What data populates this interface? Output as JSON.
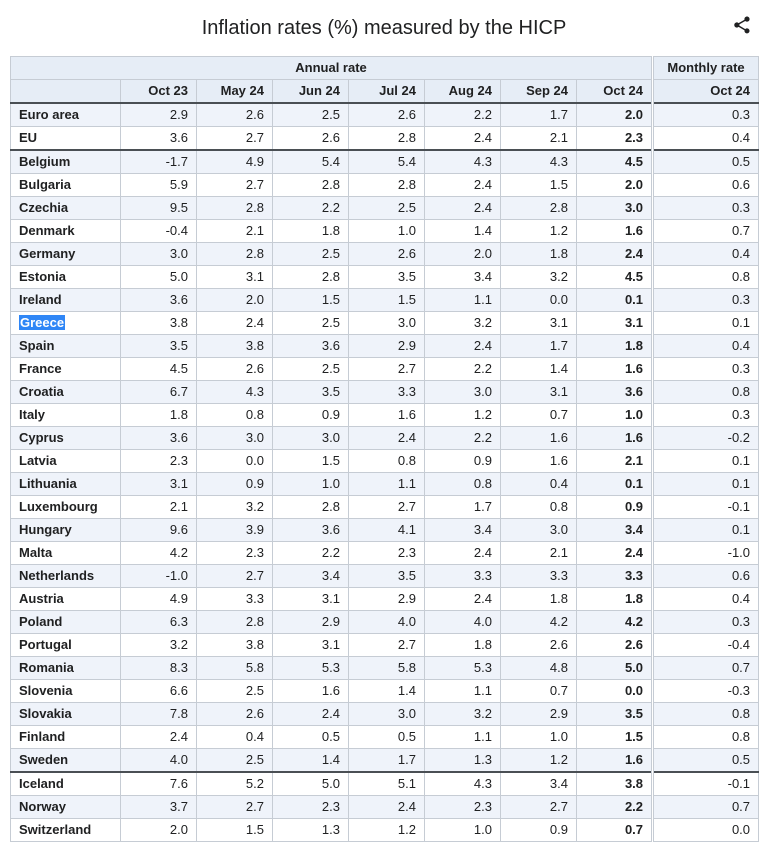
{
  "title": "Inflation rates (%) measured by the HICP",
  "ui": {
    "selected_country": "Greece",
    "share_icon": "share-icon",
    "colors": {
      "header_bg": "#e6edf6",
      "stripe_bg": "#eff3fa",
      "border": "#c6ccd4",
      "dark_border": "#4a4f54",
      "selection": "#2f86f6"
    }
  },
  "chart_data": {
    "type": "table",
    "title": "Inflation rates (%) measured by the HICP",
    "column_groups": [
      {
        "label": "Annual rate",
        "colspan": 8
      },
      {
        "label": "Monthly rate",
        "colspan": 1
      }
    ],
    "column_headers": [
      "",
      "Oct 23",
      "May 24",
      "Jun 24",
      "Jul 24",
      "Aug 24",
      "Sep 24",
      "Oct 24",
      "Oct 24"
    ],
    "rows": [
      {
        "country": "Euro area",
        "annual": [
          "2.9",
          "2.6",
          "2.5",
          "2.6",
          "2.2",
          "1.7",
          "2.0"
        ],
        "monthly": "0.3",
        "group": "aggregate"
      },
      {
        "country": "EU",
        "annual": [
          "3.6",
          "2.7",
          "2.6",
          "2.8",
          "2.4",
          "2.1",
          "2.3"
        ],
        "monthly": "0.4",
        "group": "aggregate"
      },
      {
        "country": "Belgium",
        "annual": [
          "-1.7",
          "4.9",
          "5.4",
          "5.4",
          "4.3",
          "4.3",
          "4.5"
        ],
        "monthly": "0.5",
        "group": "eu"
      },
      {
        "country": "Bulgaria",
        "annual": [
          "5.9",
          "2.7",
          "2.8",
          "2.8",
          "2.4",
          "1.5",
          "2.0"
        ],
        "monthly": "0.6",
        "group": "eu"
      },
      {
        "country": "Czechia",
        "annual": [
          "9.5",
          "2.8",
          "2.2",
          "2.5",
          "2.4",
          "2.8",
          "3.0"
        ],
        "monthly": "0.3",
        "group": "eu"
      },
      {
        "country": "Denmark",
        "annual": [
          "-0.4",
          "2.1",
          "1.8",
          "1.0",
          "1.4",
          "1.2",
          "1.6"
        ],
        "monthly": "0.7",
        "group": "eu"
      },
      {
        "country": "Germany",
        "annual": [
          "3.0",
          "2.8",
          "2.5",
          "2.6",
          "2.0",
          "1.8",
          "2.4"
        ],
        "monthly": "0.4",
        "group": "eu"
      },
      {
        "country": "Estonia",
        "annual": [
          "5.0",
          "3.1",
          "2.8",
          "3.5",
          "3.4",
          "3.2",
          "4.5"
        ],
        "monthly": "0.8",
        "group": "eu"
      },
      {
        "country": "Ireland",
        "annual": [
          "3.6",
          "2.0",
          "1.5",
          "1.5",
          "1.1",
          "0.0",
          "0.1"
        ],
        "monthly": "0.3",
        "group": "eu"
      },
      {
        "country": "Greece",
        "annual": [
          "3.8",
          "2.4",
          "2.5",
          "3.0",
          "3.2",
          "3.1",
          "3.1"
        ],
        "monthly": "0.1",
        "group": "eu"
      },
      {
        "country": "Spain",
        "annual": [
          "3.5",
          "3.8",
          "3.6",
          "2.9",
          "2.4",
          "1.7",
          "1.8"
        ],
        "monthly": "0.4",
        "group": "eu"
      },
      {
        "country": "France",
        "annual": [
          "4.5",
          "2.6",
          "2.5",
          "2.7",
          "2.2",
          "1.4",
          "1.6"
        ],
        "monthly": "0.3",
        "group": "eu"
      },
      {
        "country": "Croatia",
        "annual": [
          "6.7",
          "4.3",
          "3.5",
          "3.3",
          "3.0",
          "3.1",
          "3.6"
        ],
        "monthly": "0.8",
        "group": "eu"
      },
      {
        "country": "Italy",
        "annual": [
          "1.8",
          "0.8",
          "0.9",
          "1.6",
          "1.2",
          "0.7",
          "1.0"
        ],
        "monthly": "0.3",
        "group": "eu"
      },
      {
        "country": "Cyprus",
        "annual": [
          "3.6",
          "3.0",
          "3.0",
          "2.4",
          "2.2",
          "1.6",
          "1.6"
        ],
        "monthly": "-0.2",
        "group": "eu"
      },
      {
        "country": "Latvia",
        "annual": [
          "2.3",
          "0.0",
          "1.5",
          "0.8",
          "0.9",
          "1.6",
          "2.1"
        ],
        "monthly": "0.1",
        "group": "eu"
      },
      {
        "country": "Lithuania",
        "annual": [
          "3.1",
          "0.9",
          "1.0",
          "1.1",
          "0.8",
          "0.4",
          "0.1"
        ],
        "monthly": "0.1",
        "group": "eu"
      },
      {
        "country": "Luxembourg",
        "annual": [
          "2.1",
          "3.2",
          "2.8",
          "2.7",
          "1.7",
          "0.8",
          "0.9"
        ],
        "monthly": "-0.1",
        "group": "eu"
      },
      {
        "country": "Hungary",
        "annual": [
          "9.6",
          "3.9",
          "3.6",
          "4.1",
          "3.4",
          "3.0",
          "3.4"
        ],
        "monthly": "0.1",
        "group": "eu"
      },
      {
        "country": "Malta",
        "annual": [
          "4.2",
          "2.3",
          "2.2",
          "2.3",
          "2.4",
          "2.1",
          "2.4"
        ],
        "monthly": "-1.0",
        "group": "eu"
      },
      {
        "country": "Netherlands",
        "annual": [
          "-1.0",
          "2.7",
          "3.4",
          "3.5",
          "3.3",
          "3.3",
          "3.3"
        ],
        "monthly": "0.6",
        "group": "eu"
      },
      {
        "country": "Austria",
        "annual": [
          "4.9",
          "3.3",
          "3.1",
          "2.9",
          "2.4",
          "1.8",
          "1.8"
        ],
        "monthly": "0.4",
        "group": "eu"
      },
      {
        "country": "Poland",
        "annual": [
          "6.3",
          "2.8",
          "2.9",
          "4.0",
          "4.0",
          "4.2",
          "4.2"
        ],
        "monthly": "0.3",
        "group": "eu"
      },
      {
        "country": "Portugal",
        "annual": [
          "3.2",
          "3.8",
          "3.1",
          "2.7",
          "1.8",
          "2.6",
          "2.6"
        ],
        "monthly": "-0.4",
        "group": "eu"
      },
      {
        "country": "Romania",
        "annual": [
          "8.3",
          "5.8",
          "5.3",
          "5.8",
          "5.3",
          "4.8",
          "5.0"
        ],
        "monthly": "0.7",
        "group": "eu"
      },
      {
        "country": "Slovenia",
        "annual": [
          "6.6",
          "2.5",
          "1.6",
          "1.4",
          "1.1",
          "0.7",
          "0.0"
        ],
        "monthly": "-0.3",
        "group": "eu"
      },
      {
        "country": "Slovakia",
        "annual": [
          "7.8",
          "2.6",
          "2.4",
          "3.0",
          "3.2",
          "2.9",
          "3.5"
        ],
        "monthly": "0.8",
        "group": "eu"
      },
      {
        "country": "Finland",
        "annual": [
          "2.4",
          "0.4",
          "0.5",
          "0.5",
          "1.1",
          "1.0",
          "1.5"
        ],
        "monthly": "0.8",
        "group": "eu"
      },
      {
        "country": "Sweden",
        "annual": [
          "4.0",
          "2.5",
          "1.4",
          "1.7",
          "1.3",
          "1.2",
          "1.6"
        ],
        "monthly": "0.5",
        "group": "eu"
      },
      {
        "country": "Iceland",
        "annual": [
          "7.6",
          "5.2",
          "5.0",
          "5.1",
          "4.3",
          "3.4",
          "3.8"
        ],
        "monthly": "-0.1",
        "group": "non-eu"
      },
      {
        "country": "Norway",
        "annual": [
          "3.7",
          "2.7",
          "2.3",
          "2.4",
          "2.3",
          "2.7",
          "2.2"
        ],
        "monthly": "0.7",
        "group": "non-eu"
      },
      {
        "country": "Switzerland",
        "annual": [
          "2.0",
          "1.5",
          "1.3",
          "1.2",
          "1.0",
          "0.9",
          "0.7"
        ],
        "monthly": "0.0",
        "group": "non-eu"
      }
    ]
  }
}
